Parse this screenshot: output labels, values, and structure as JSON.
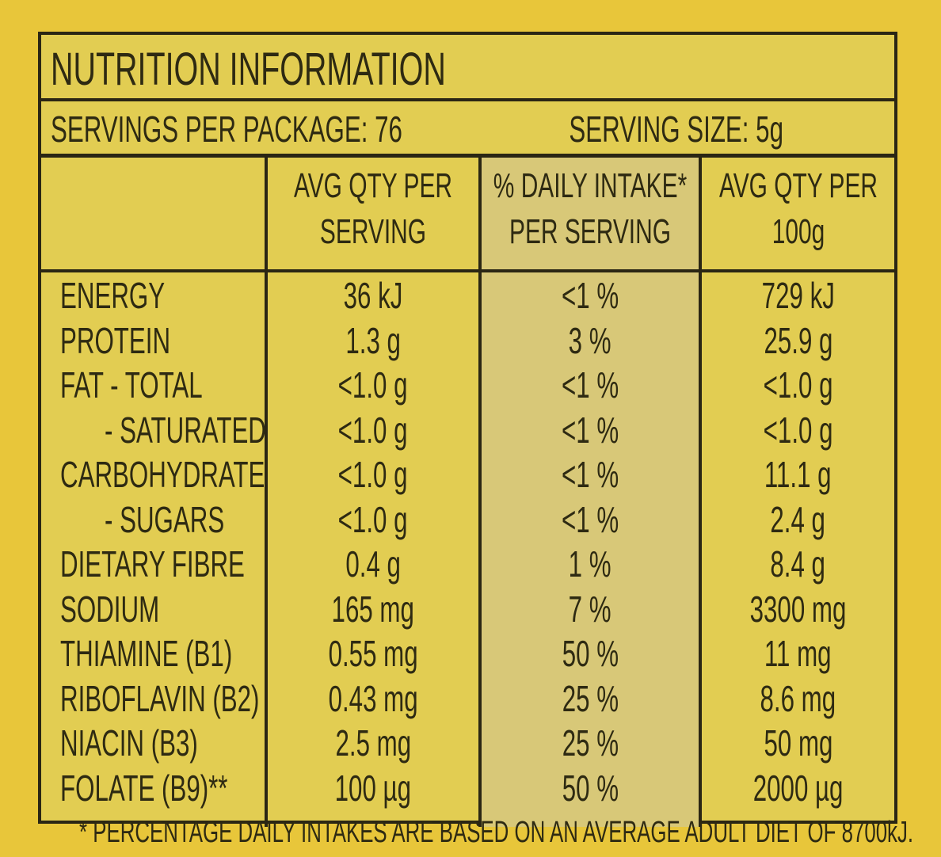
{
  "title": "NUTRITION INFORMATION",
  "servings_per_package": "SERVINGS PER PACKAGE: 76",
  "serving_size": "SERVING SIZE: 5g",
  "table": {
    "headers": [
      "AVG QTY PER SERVING",
      "% DAILY INTAKE* PER SERVING",
      "AVG QTY PER 100g"
    ],
    "rows": [
      [
        "ENERGY",
        "36 kJ",
        "<1 %",
        "729 kJ"
      ],
      [
        "PROTEIN",
        "1.3 g",
        "3 %",
        "25.9 g"
      ],
      [
        "FAT - TOTAL",
        "<1.0 g",
        "<1 %",
        "<1.0 g"
      ],
      [
        "- SATURATED",
        "<1.0 g",
        "<1 %",
        "<1.0 g"
      ],
      [
        "CARBOHYDRATE",
        "<1.0 g",
        "<1 %",
        "11.1 g"
      ],
      [
        "- SUGARS",
        "<1.0 g",
        "<1 %",
        "2.4 g"
      ],
      [
        "DIETARY FIBRE",
        "0.4 g",
        "1 %",
        "8.4 g"
      ],
      [
        "SODIUM",
        "165 mg",
        "7 %",
        "3300 mg"
      ],
      [
        "THIAMINE (B1)",
        "0.55 mg",
        "50 %",
        "11 mg"
      ],
      [
        "RIBOFLAVIN (B2)",
        "0.43 mg",
        "25 %",
        "8.6 mg"
      ],
      [
        "NIACIN (B3)",
        "2.5 mg",
        "25 %",
        "50 mg"
      ],
      [
        "FOLATE (B9)**",
        "100 µg",
        "50 %",
        "2000 µg"
      ]
    ]
  },
  "footnote": "* PERCENTAGE DAILY INTAKES ARE BASED ON AN AVERAGE ADULT DIET OF 8700kJ."
}
